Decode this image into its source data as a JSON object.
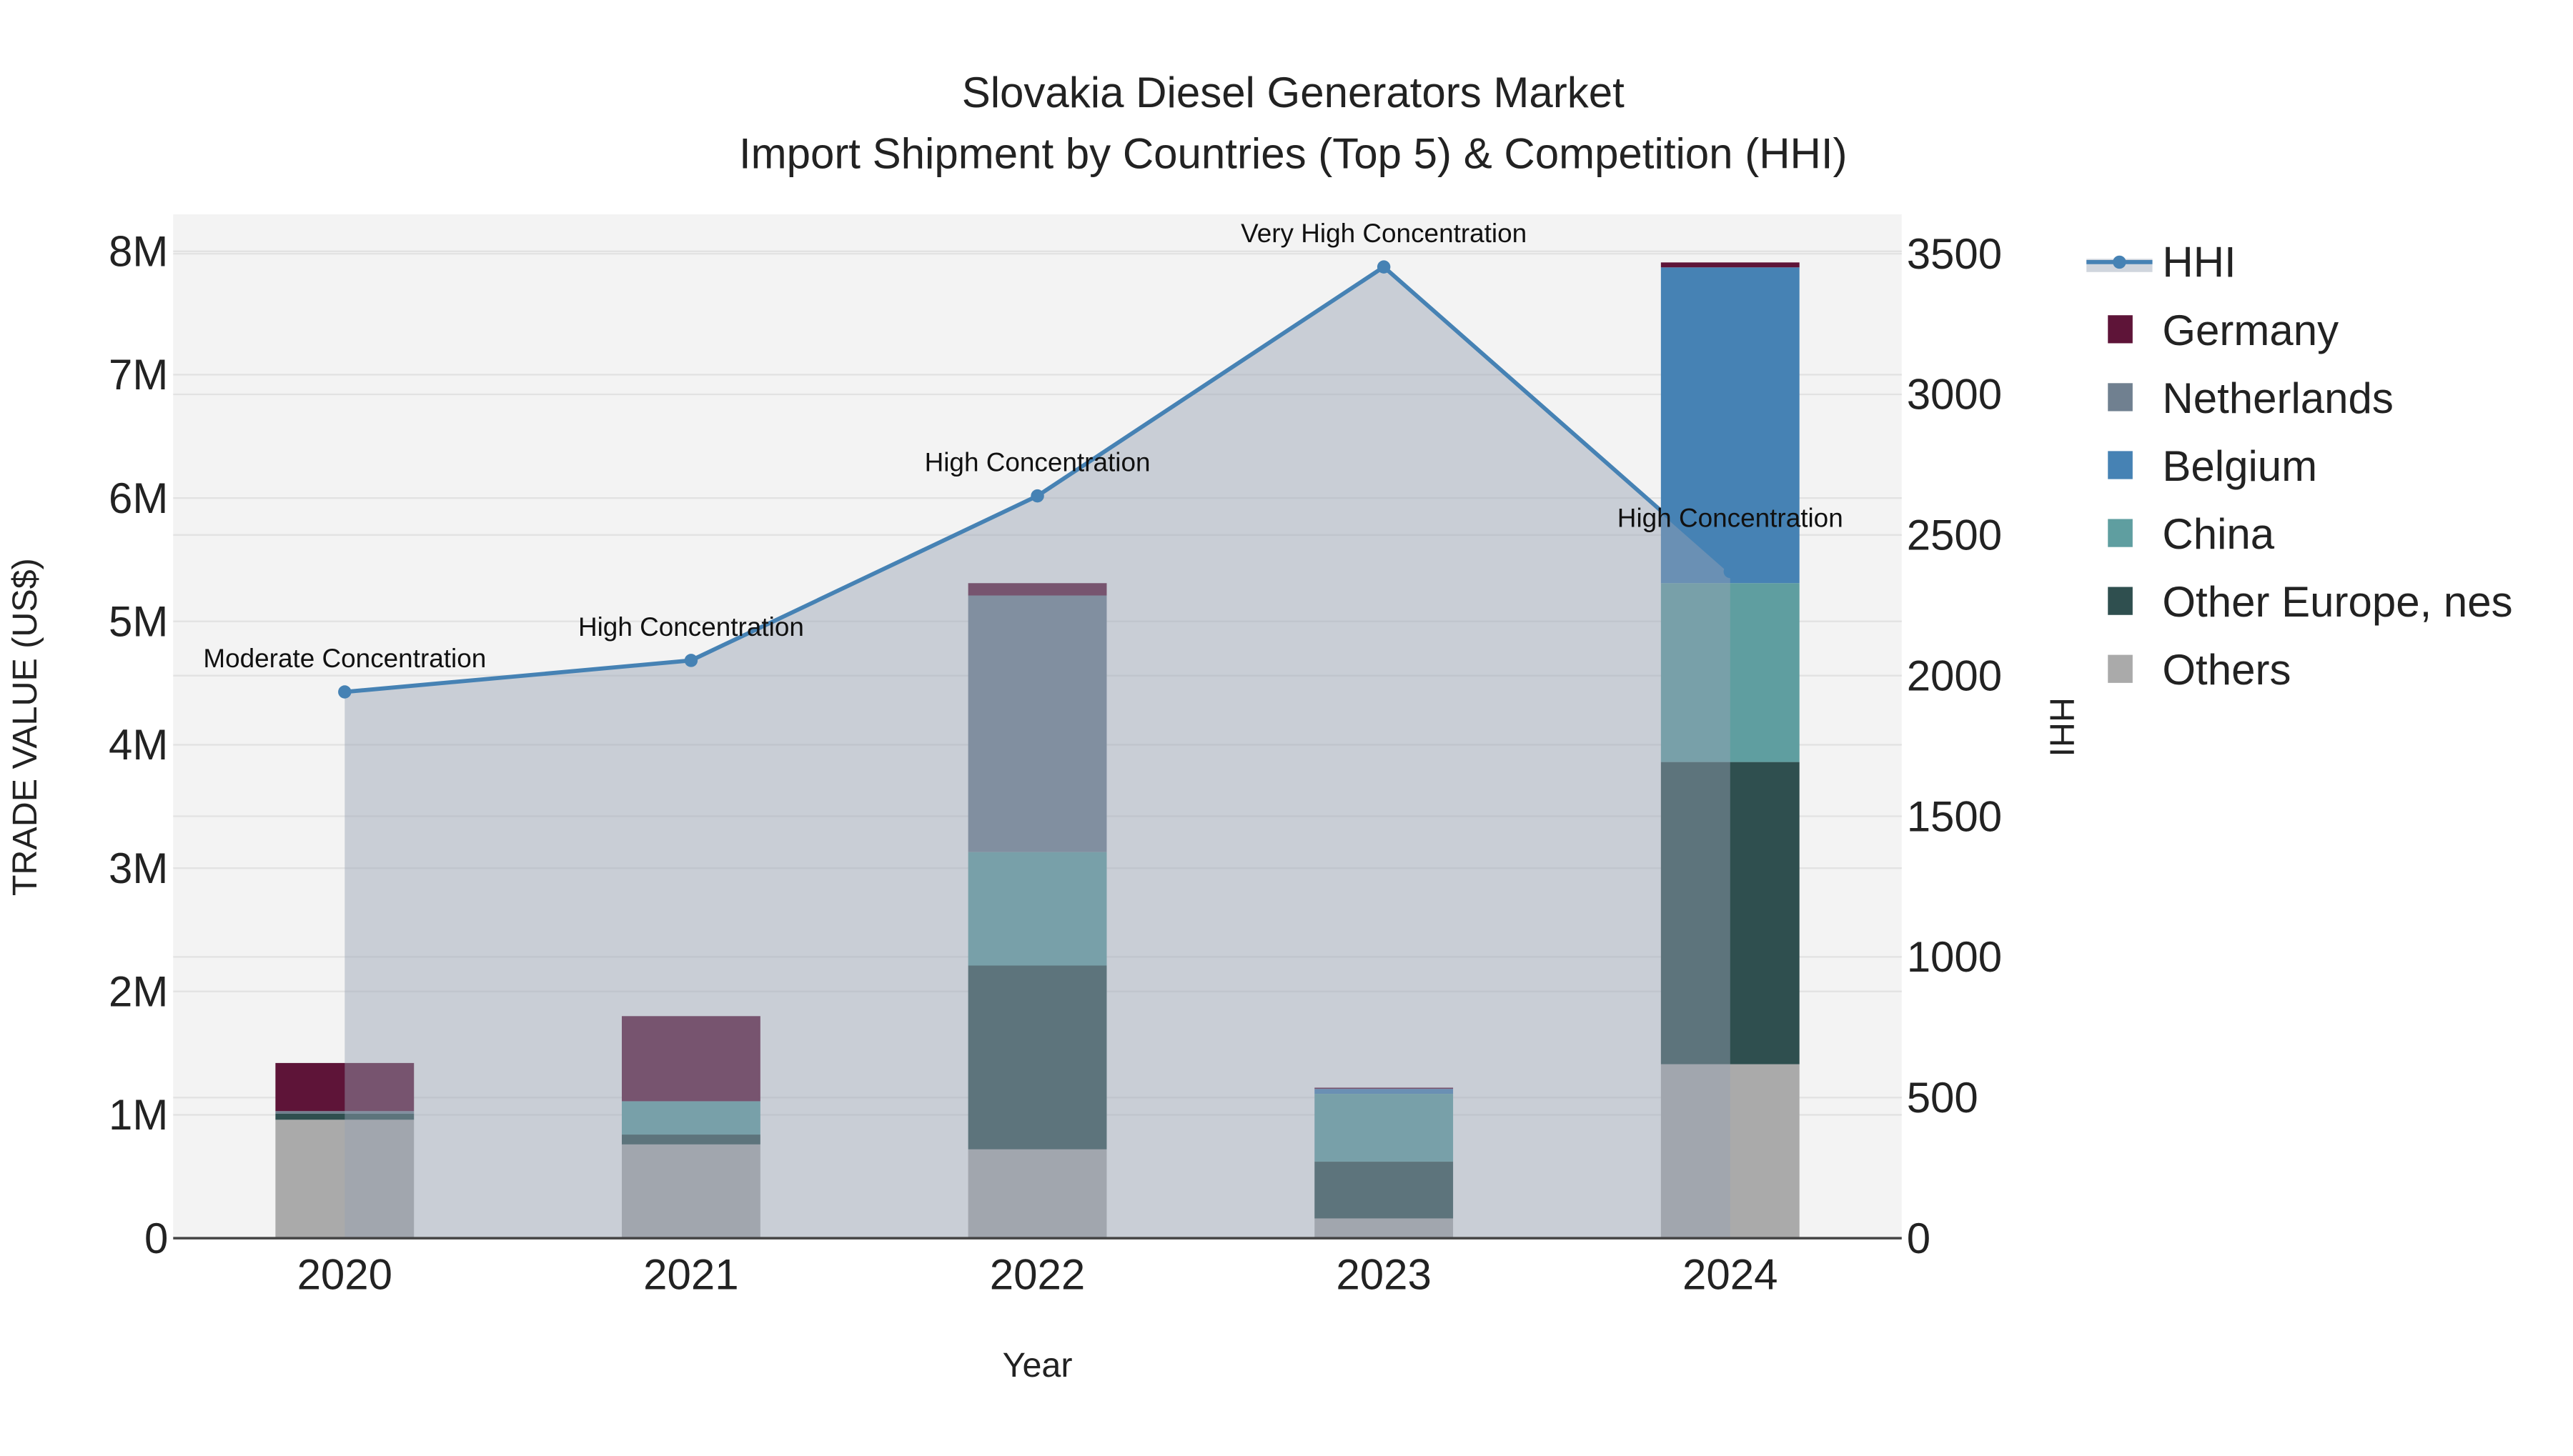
{
  "chart_data": {
    "type": "bar",
    "stacked": true,
    "title": "Slovakia Diesel Generators Market",
    "subtitle": "Import Shipment by Countries (Top 5) & Competition (HHI)",
    "xlabel": "Year",
    "ylabel": "TRADE VALUE (US$)",
    "y2label": "HHI",
    "categories": [
      "2020",
      "2021",
      "2022",
      "2023",
      "2024"
    ],
    "ylim": [
      0,
      8300000
    ],
    "y2lim": [
      0,
      3640
    ],
    "yticks": [
      {
        "v": 0,
        "label": "0"
      },
      {
        "v": 1000000,
        "label": "1M"
      },
      {
        "v": 2000000,
        "label": "2M"
      },
      {
        "v": 3000000,
        "label": "3M"
      },
      {
        "v": 4000000,
        "label": "4M"
      },
      {
        "v": 5000000,
        "label": "5M"
      },
      {
        "v": 6000000,
        "label": "6M"
      },
      {
        "v": 7000000,
        "label": "7M"
      },
      {
        "v": 8000000,
        "label": "8M"
      }
    ],
    "y2ticks": [
      {
        "v": 0,
        "label": "0"
      },
      {
        "v": 500,
        "label": "500"
      },
      {
        "v": 1000,
        "label": "1000"
      },
      {
        "v": 1500,
        "label": "1500"
      },
      {
        "v": 2000,
        "label": "2000"
      },
      {
        "v": 2500,
        "label": "2500"
      },
      {
        "v": 3000,
        "label": "3000"
      },
      {
        "v": 3500,
        "label": "3500"
      }
    ],
    "series": [
      {
        "name": "Others",
        "color": "#aaaaaa",
        "values": [
          960000,
          760000,
          720000,
          160000,
          1410000
        ]
      },
      {
        "name": "Other Europe, nes",
        "color": "#2f4f4f",
        "values": [
          50000,
          80000,
          1490000,
          460000,
          2450000
        ]
      },
      {
        "name": "China",
        "color": "#5f9ea0",
        "values": [
          0,
          270000,
          920000,
          550000,
          1450000
        ]
      },
      {
        "name": "Belgium",
        "color": "#4682b4",
        "values": [
          0,
          0,
          0,
          40000,
          2560000
        ]
      },
      {
        "name": "Netherlands",
        "color": "#708090",
        "values": [
          20000,
          0,
          2080000,
          0,
          0
        ]
      },
      {
        "name": "Germany",
        "color": "#5e1438",
        "values": [
          390000,
          690000,
          100000,
          10000,
          40000
        ]
      }
    ],
    "legend_order": [
      "HHI",
      "Germany",
      "Netherlands",
      "Belgium",
      "China",
      "Other Europe, nes",
      "Others"
    ],
    "hhi": {
      "name": "HHI",
      "color": "#4682b4",
      "values": [
        1942,
        2054,
        2639,
        3453,
        2370
      ],
      "labels": [
        "Moderate Concentration",
        "High Concentration",
        "High Concentration",
        "Very High Concentration",
        "High Concentration"
      ]
    },
    "legend_position": "right"
  }
}
